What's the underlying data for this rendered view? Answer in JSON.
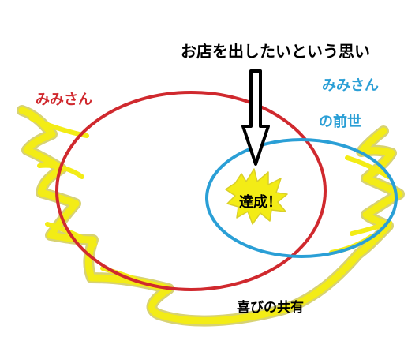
{
  "labels": {
    "wish": "お店を出したいという思い",
    "mimi": "みみさん",
    "past_life_line1": "みみさん",
    "past_life_line2": "の前世",
    "achieved": "達成！",
    "shared_joy": "喜びの共有"
  },
  "colors": {
    "mimi_circle": "#d0292e",
    "past_life_circle": "#2a9fd6",
    "mimi_text": "#d0292e",
    "past_life_text": "#2a9fd6",
    "joy_scribble": "#f3ec16",
    "joy_outline": "#b6ad00",
    "arrow": "#000000",
    "text": "#000000"
  },
  "icons": {
    "arrow": "down-arrow-icon",
    "achievement_burst": "star-burst-icon"
  }
}
